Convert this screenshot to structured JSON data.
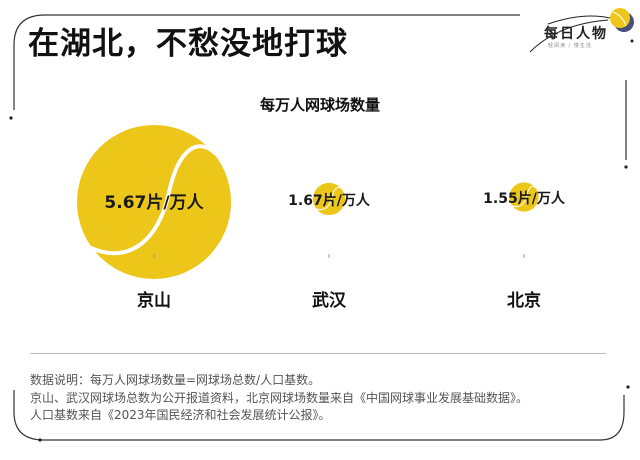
{
  "header": {
    "title": "在湖北，不愁没地打球",
    "logo_text": "每日人物",
    "logo_subtext": "轻阅读 / 慢生活"
  },
  "colors": {
    "ball": "#EDC61A",
    "ball_seam": "#ffffff",
    "logo_ball_dark": "#4a4f7a"
  },
  "chart_data": {
    "type": "bubble",
    "title": "每万人网球场数量",
    "unit": "片/万人",
    "categories": [
      "京山",
      "武汉",
      "北京"
    ],
    "values": [
      5.67,
      1.67,
      1.55
    ],
    "data_labels": [
      "5.67片/万人",
      "1.67片/万人",
      "1.55片/万人"
    ]
  },
  "notes": [
    "数据说明：每万人网球场数量=网球场总数/人口基数。",
    "京山、武汉网球场总数为公开报道资料，北京网球场数量来自《中国网球事业发展基础数据》。",
    "人口基数来自《2023年国民经济和社会发展统计公报》。"
  ]
}
